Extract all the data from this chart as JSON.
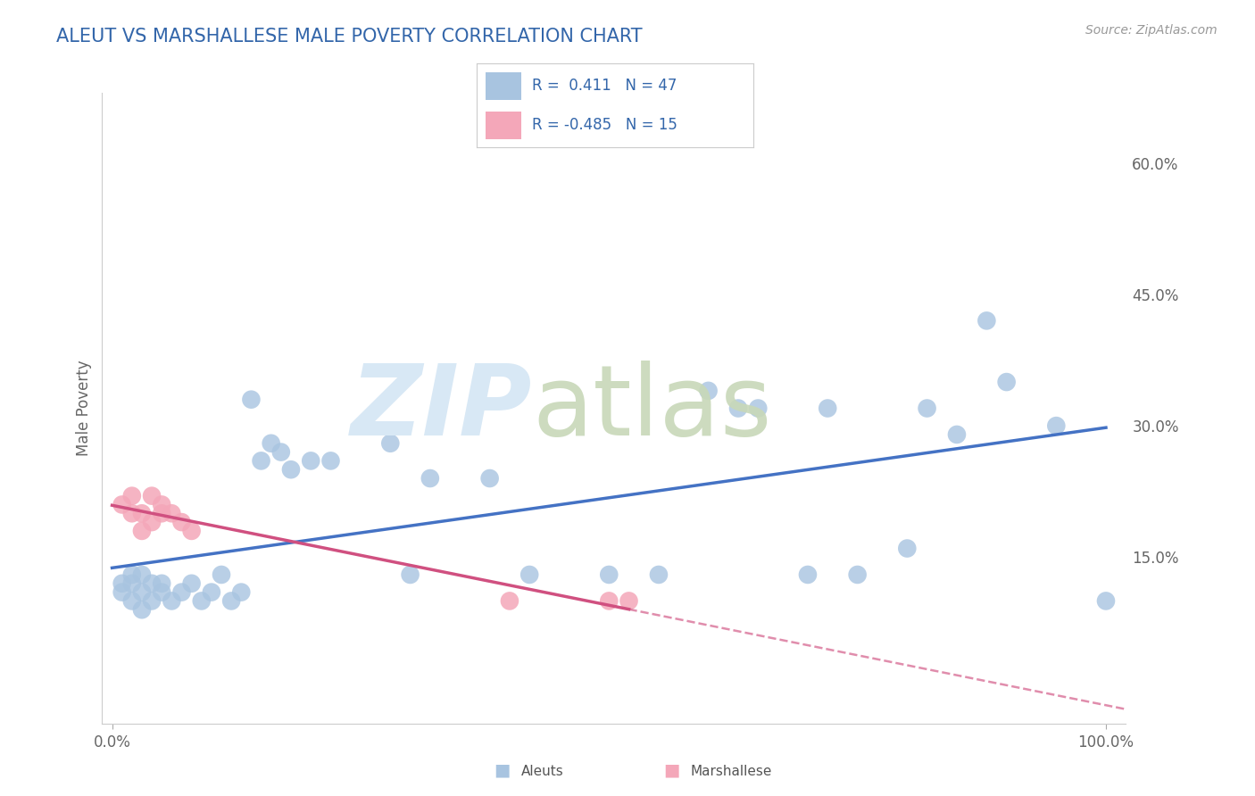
{
  "title": "ALEUT VS MARSHALLESE MALE POVERTY CORRELATION CHART",
  "source": "Source: ZipAtlas.com",
  "ylabel": "Male Poverty",
  "yticks": [
    0.0,
    0.15,
    0.3,
    0.45,
    0.6
  ],
  "ytick_labels": [
    "",
    "15.0%",
    "30.0%",
    "45.0%",
    "60.0%"
  ],
  "aleuts_R": 0.411,
  "aleuts_N": 47,
  "marshallese_R": -0.485,
  "marshallese_N": 15,
  "aleut_color": "#a8c4e0",
  "aleut_line_color": "#4472c4",
  "marshallese_color": "#f4a7b9",
  "marshallese_line_color": "#d05080",
  "aleuts_x": [
    0.01,
    0.01,
    0.02,
    0.02,
    0.02,
    0.03,
    0.03,
    0.03,
    0.04,
    0.04,
    0.05,
    0.05,
    0.06,
    0.07,
    0.08,
    0.09,
    0.1,
    0.11,
    0.12,
    0.13,
    0.14,
    0.15,
    0.16,
    0.17,
    0.18,
    0.2,
    0.22,
    0.28,
    0.3,
    0.32,
    0.38,
    0.42,
    0.5,
    0.55,
    0.6,
    0.63,
    0.65,
    0.7,
    0.72,
    0.75,
    0.8,
    0.82,
    0.85,
    0.88,
    0.9,
    0.95,
    1.0
  ],
  "aleuts_y": [
    0.12,
    0.11,
    0.1,
    0.12,
    0.13,
    0.11,
    0.09,
    0.13,
    0.1,
    0.12,
    0.11,
    0.12,
    0.1,
    0.11,
    0.12,
    0.1,
    0.11,
    0.13,
    0.1,
    0.11,
    0.33,
    0.26,
    0.28,
    0.27,
    0.25,
    0.26,
    0.26,
    0.28,
    0.13,
    0.24,
    0.24,
    0.13,
    0.13,
    0.13,
    0.34,
    0.32,
    0.32,
    0.13,
    0.32,
    0.13,
    0.16,
    0.32,
    0.29,
    0.42,
    0.35,
    0.3,
    0.1
  ],
  "marshallese_x": [
    0.01,
    0.02,
    0.02,
    0.03,
    0.03,
    0.04,
    0.04,
    0.05,
    0.05,
    0.06,
    0.07,
    0.08,
    0.4,
    0.5,
    0.52
  ],
  "marshallese_y": [
    0.21,
    0.2,
    0.22,
    0.2,
    0.18,
    0.22,
    0.19,
    0.2,
    0.21,
    0.2,
    0.19,
    0.18,
    0.1,
    0.1,
    0.1
  ]
}
